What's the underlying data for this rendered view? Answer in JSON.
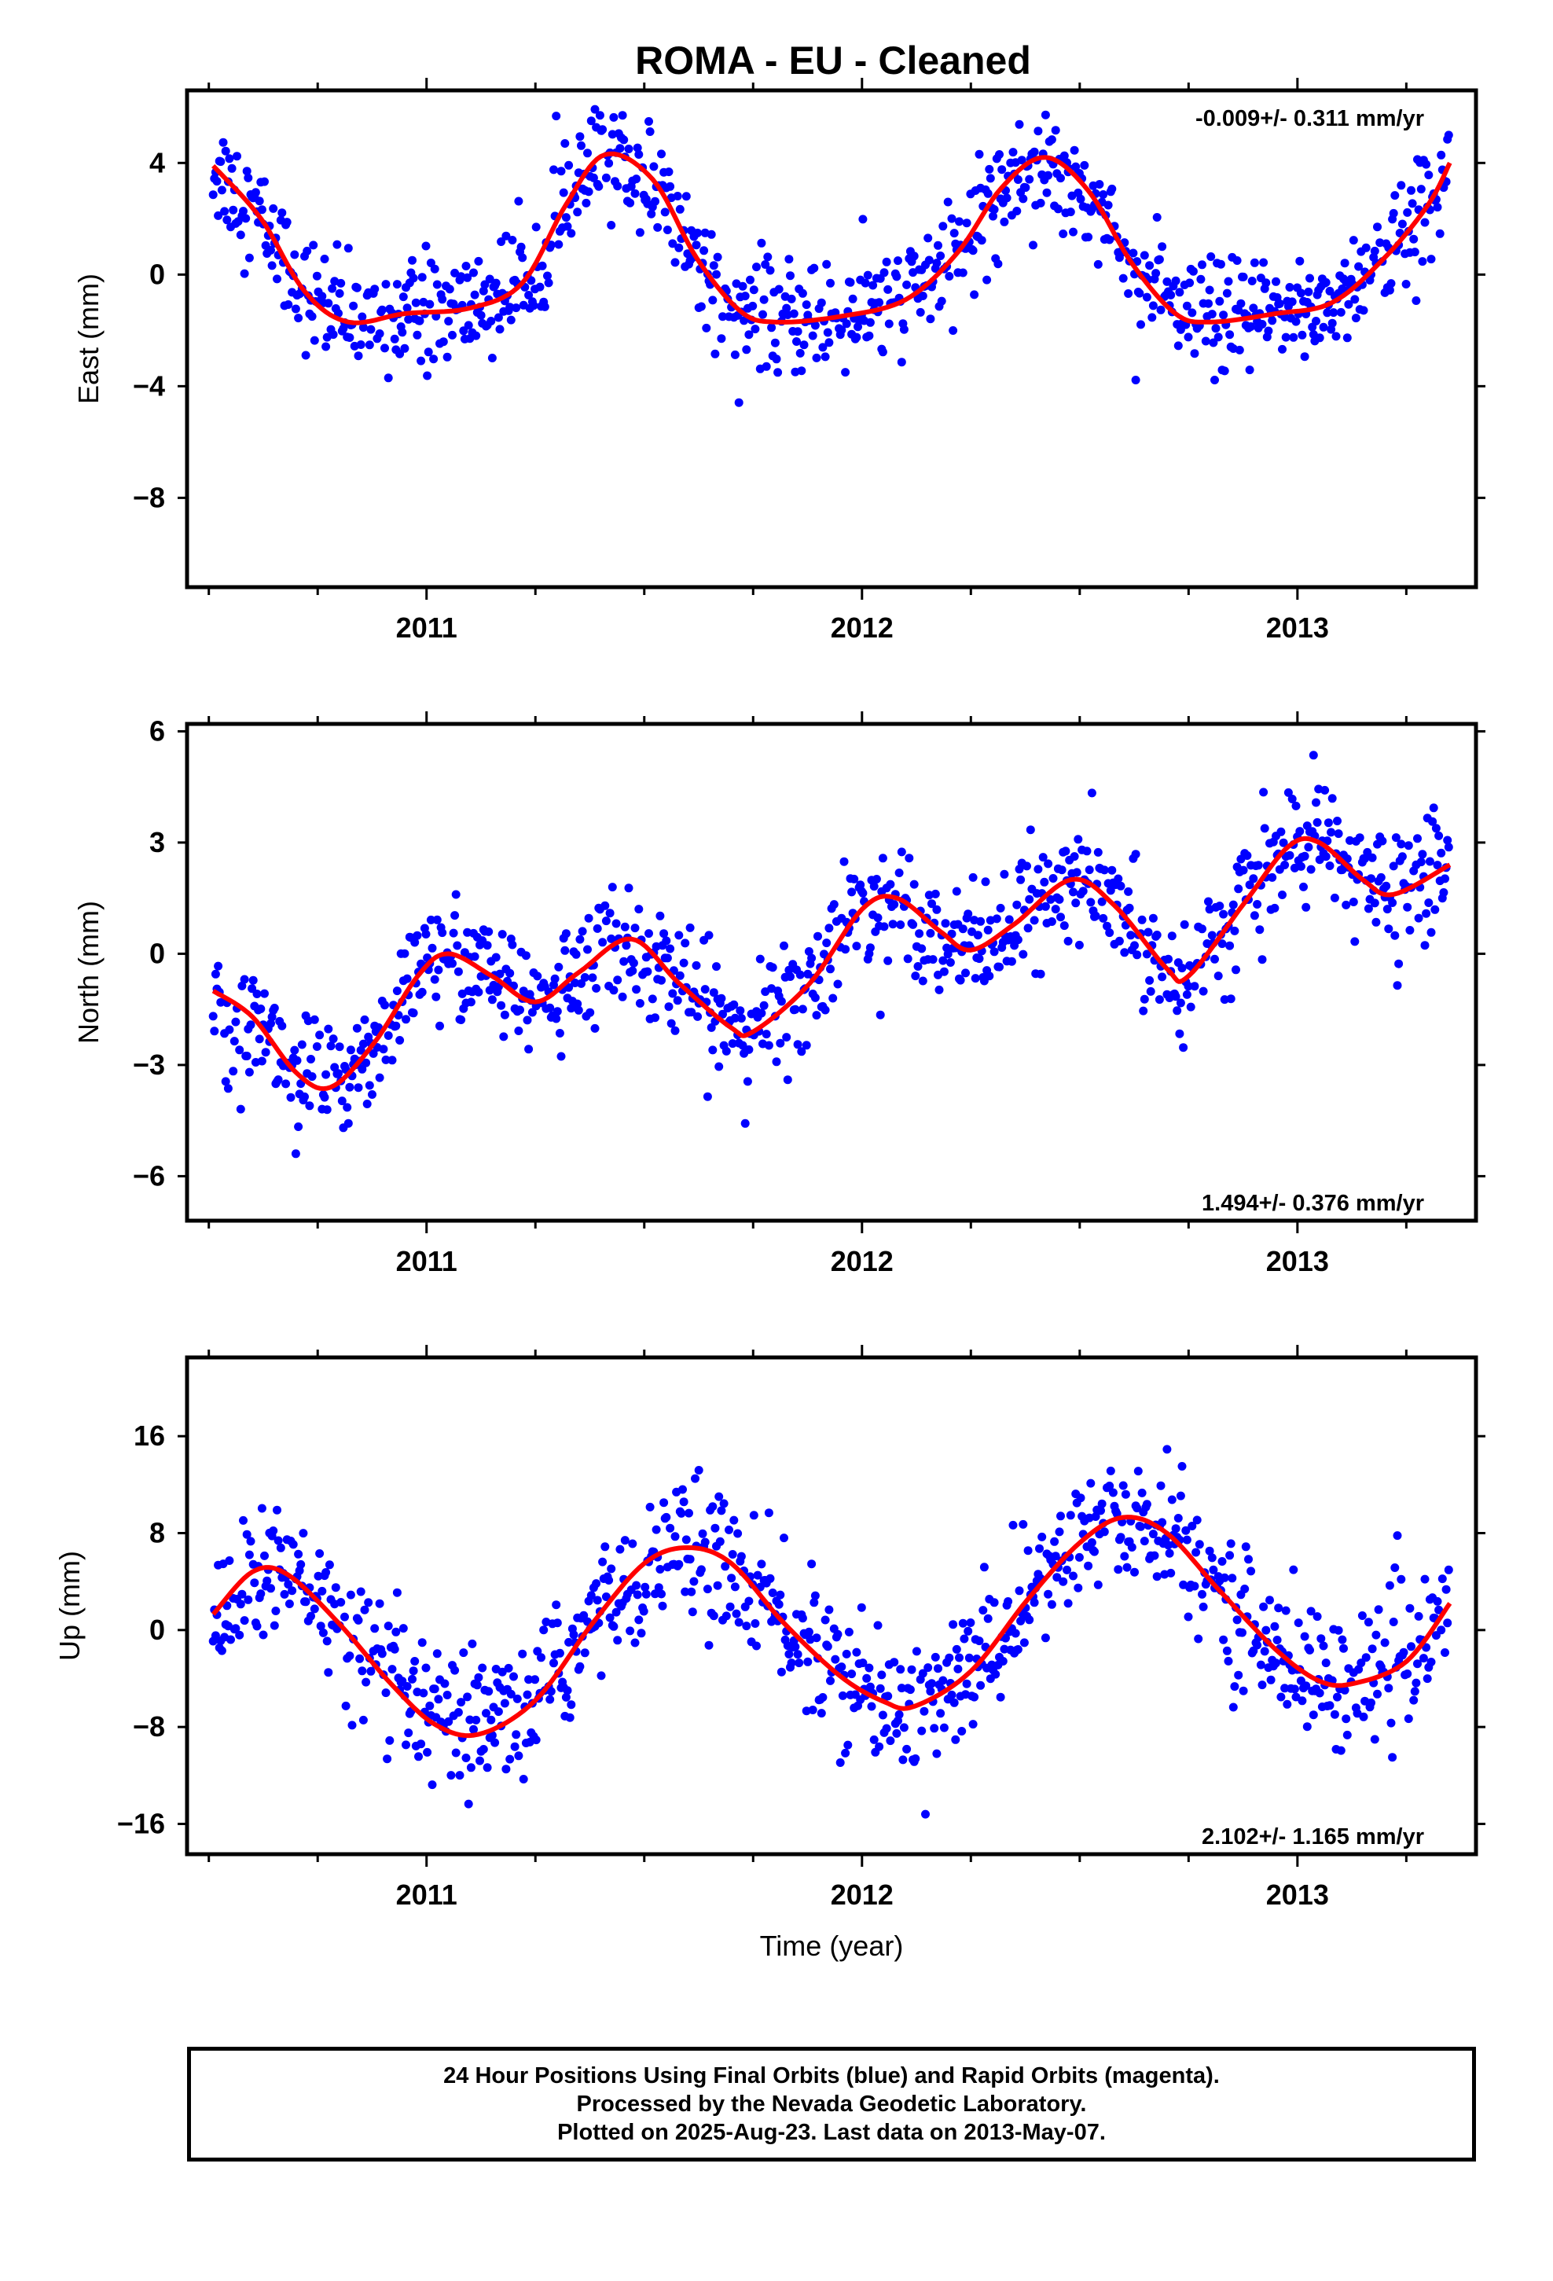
{
  "title": "ROMA  - EU - Cleaned",
  "xlabel": "Time (year)",
  "colors": {
    "points": "#0000ff",
    "fit": "#ff0000",
    "frame": "#000000"
  },
  "panels": [
    {
      "ylabel": "East (mm)",
      "rate": "-0.009+/- 0.311 mm/yr",
      "rate_position": "top-right"
    },
    {
      "ylabel": "North (mm)",
      "rate": "1.494+/- 0.376 mm/yr",
      "rate_position": "bottom-right"
    },
    {
      "ylabel": "Up (mm)",
      "rate": "2.102+/- 1.165 mm/yr",
      "rate_position": "bottom-right"
    }
  ],
  "footer": {
    "line1": "24 Hour Positions Using Final Orbits (blue) and Rapid Orbits (magenta).",
    "line2": "Processed by the Nevada Geodetic Laboratory.",
    "line3": "Plotted on 2025-Aug-23. Last data on 2013-May-07."
  },
  "chart_data": [
    {
      "type": "scatter",
      "series": [
        {
          "values_description": "daily positions",
          "color": "#0000ff"
        },
        {
          "values_description": "model fit",
          "color": "#ff0000"
        }
      ],
      "ylabel": "East (mm)",
      "xlim": [
        2010.45,
        2013.41
      ],
      "ylim": [
        -11.2,
        6.6
      ],
      "x_ticks": [
        2011,
        2012,
        2013
      ],
      "y_ticks": [
        -8,
        -4,
        0,
        4
      ],
      "fit_points": [
        [
          2010.51,
          3.9
        ],
        [
          2010.62,
          2.0
        ],
        [
          2010.72,
          -0.6
        ],
        [
          2010.82,
          -1.7
        ],
        [
          2010.95,
          -1.4
        ],
        [
          2011.1,
          -1.2
        ],
        [
          2011.22,
          -0.3
        ],
        [
          2011.32,
          2.5
        ],
        [
          2011.41,
          4.3
        ],
        [
          2011.52,
          3.4
        ],
        [
          2011.62,
          0.6
        ],
        [
          2011.72,
          -1.3
        ],
        [
          2011.8,
          -1.7
        ],
        [
          2011.95,
          -1.5
        ],
        [
          2012.1,
          -0.9
        ],
        [
          2012.22,
          0.8
        ],
        [
          2012.32,
          3.1
        ],
        [
          2012.42,
          4.2
        ],
        [
          2012.52,
          3.0
        ],
        [
          2012.62,
          0.4
        ],
        [
          2012.72,
          -1.4
        ],
        [
          2012.8,
          -1.7
        ],
        [
          2012.95,
          -1.4
        ],
        [
          2013.08,
          -1.0
        ],
        [
          2013.2,
          0.6
        ],
        [
          2013.3,
          2.5
        ],
        [
          2013.35,
          4.0
        ]
      ],
      "amp": 3.2,
      "phase": 0.4,
      "trend": 0.0,
      "offset": 1.1,
      "noise": 1.0
    },
    {
      "type": "scatter",
      "series": [
        {
          "values_description": "daily positions",
          "color": "#0000ff"
        },
        {
          "values_description": "model fit",
          "color": "#ff0000"
        }
      ],
      "ylabel": "North (mm)",
      "xlim": [
        2010.45,
        2013.41
      ],
      "ylim": [
        -7.2,
        6.2
      ],
      "x_ticks": [
        2011,
        2012,
        2013
      ],
      "y_ticks": [
        -6,
        -3,
        0,
        3,
        6
      ],
      "fit_points": [
        [
          2010.51,
          -1.0
        ],
        [
          2010.6,
          -1.7
        ],
        [
          2010.7,
          -3.2
        ],
        [
          2010.78,
          -3.6
        ],
        [
          2010.88,
          -2.4
        ],
        [
          2010.98,
          -0.6
        ],
        [
          2011.05,
          0.0
        ],
        [
          2011.15,
          -0.6
        ],
        [
          2011.25,
          -1.3
        ],
        [
          2011.35,
          -0.5
        ],
        [
          2011.47,
          0.4
        ],
        [
          2011.58,
          -0.8
        ],
        [
          2011.7,
          -2.0
        ],
        [
          2011.75,
          -2.1
        ],
        [
          2011.88,
          -0.8
        ],
        [
          2012.0,
          1.2
        ],
        [
          2012.08,
          1.5
        ],
        [
          2012.18,
          0.6
        ],
        [
          2012.25,
          0.1
        ],
        [
          2012.35,
          0.8
        ],
        [
          2012.48,
          2.0
        ],
        [
          2012.58,
          1.3
        ],
        [
          2012.7,
          -0.4
        ],
        [
          2012.75,
          -0.6
        ],
        [
          2012.88,
          1.4
        ],
        [
          2012.98,
          2.9
        ],
        [
          2013.05,
          3.0
        ],
        [
          2013.15,
          2.0
        ],
        [
          2013.22,
          1.6
        ],
        [
          2013.35,
          2.4
        ]
      ],
      "amp": 1.2,
      "phase": 1.2,
      "trend": 1.494,
      "offset": 0.0,
      "noise": 0.8
    },
    {
      "type": "scatter",
      "series": [
        {
          "values_description": "daily positions",
          "color": "#0000ff"
        },
        {
          "values_description": "model fit",
          "color": "#ff0000"
        }
      ],
      "ylabel": "Up (mm)",
      "xlim": [
        2010.45,
        2013.41
      ],
      "ylim": [
        -18.5,
        22.5
      ],
      "x_ticks": [
        2011,
        2012,
        2013
      ],
      "y_ticks": [
        -16,
        -8,
        0,
        8,
        16
      ],
      "fit_points": [
        [
          2010.51,
          1.3
        ],
        [
          2010.6,
          4.8
        ],
        [
          2010.68,
          4.6
        ],
        [
          2010.8,
          0.5
        ],
        [
          2010.92,
          -4.5
        ],
        [
          2011.02,
          -7.8
        ],
        [
          2011.12,
          -8.6
        ],
        [
          2011.25,
          -5.8
        ],
        [
          2011.38,
          0.5
        ],
        [
          2011.5,
          5.5
        ],
        [
          2011.6,
          6.8
        ],
        [
          2011.7,
          5.5
        ],
        [
          2011.82,
          0.6
        ],
        [
          2011.95,
          -3.8
        ],
        [
          2012.05,
          -5.9
        ],
        [
          2012.12,
          -6.3
        ],
        [
          2012.25,
          -3.4
        ],
        [
          2012.38,
          2.5
        ],
        [
          2012.5,
          7.2
        ],
        [
          2012.6,
          9.3
        ],
        [
          2012.7,
          8.0
        ],
        [
          2012.82,
          3.3
        ],
        [
          2012.95,
          -1.6
        ],
        [
          2013.05,
          -4.2
        ],
        [
          2013.13,
          -4.4
        ],
        [
          2013.25,
          -2.6
        ],
        [
          2013.35,
          2.2
        ]
      ],
      "amp": 7.2,
      "phase": 2.0,
      "trend": 2.102,
      "offset": 0.0,
      "noise": 2.8
    }
  ]
}
